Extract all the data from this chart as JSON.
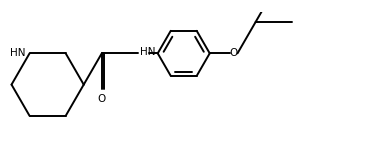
{
  "background_color": "#ffffff",
  "line_color": "#000000",
  "line_width": 1.4,
  "font_size": 7.5,
  "figsize": [
    3.66,
    1.5
  ],
  "dpi": 100,
  "xlim": [
    -0.3,
    9.8
  ],
  "ylim": [
    0.5,
    4.0
  ]
}
